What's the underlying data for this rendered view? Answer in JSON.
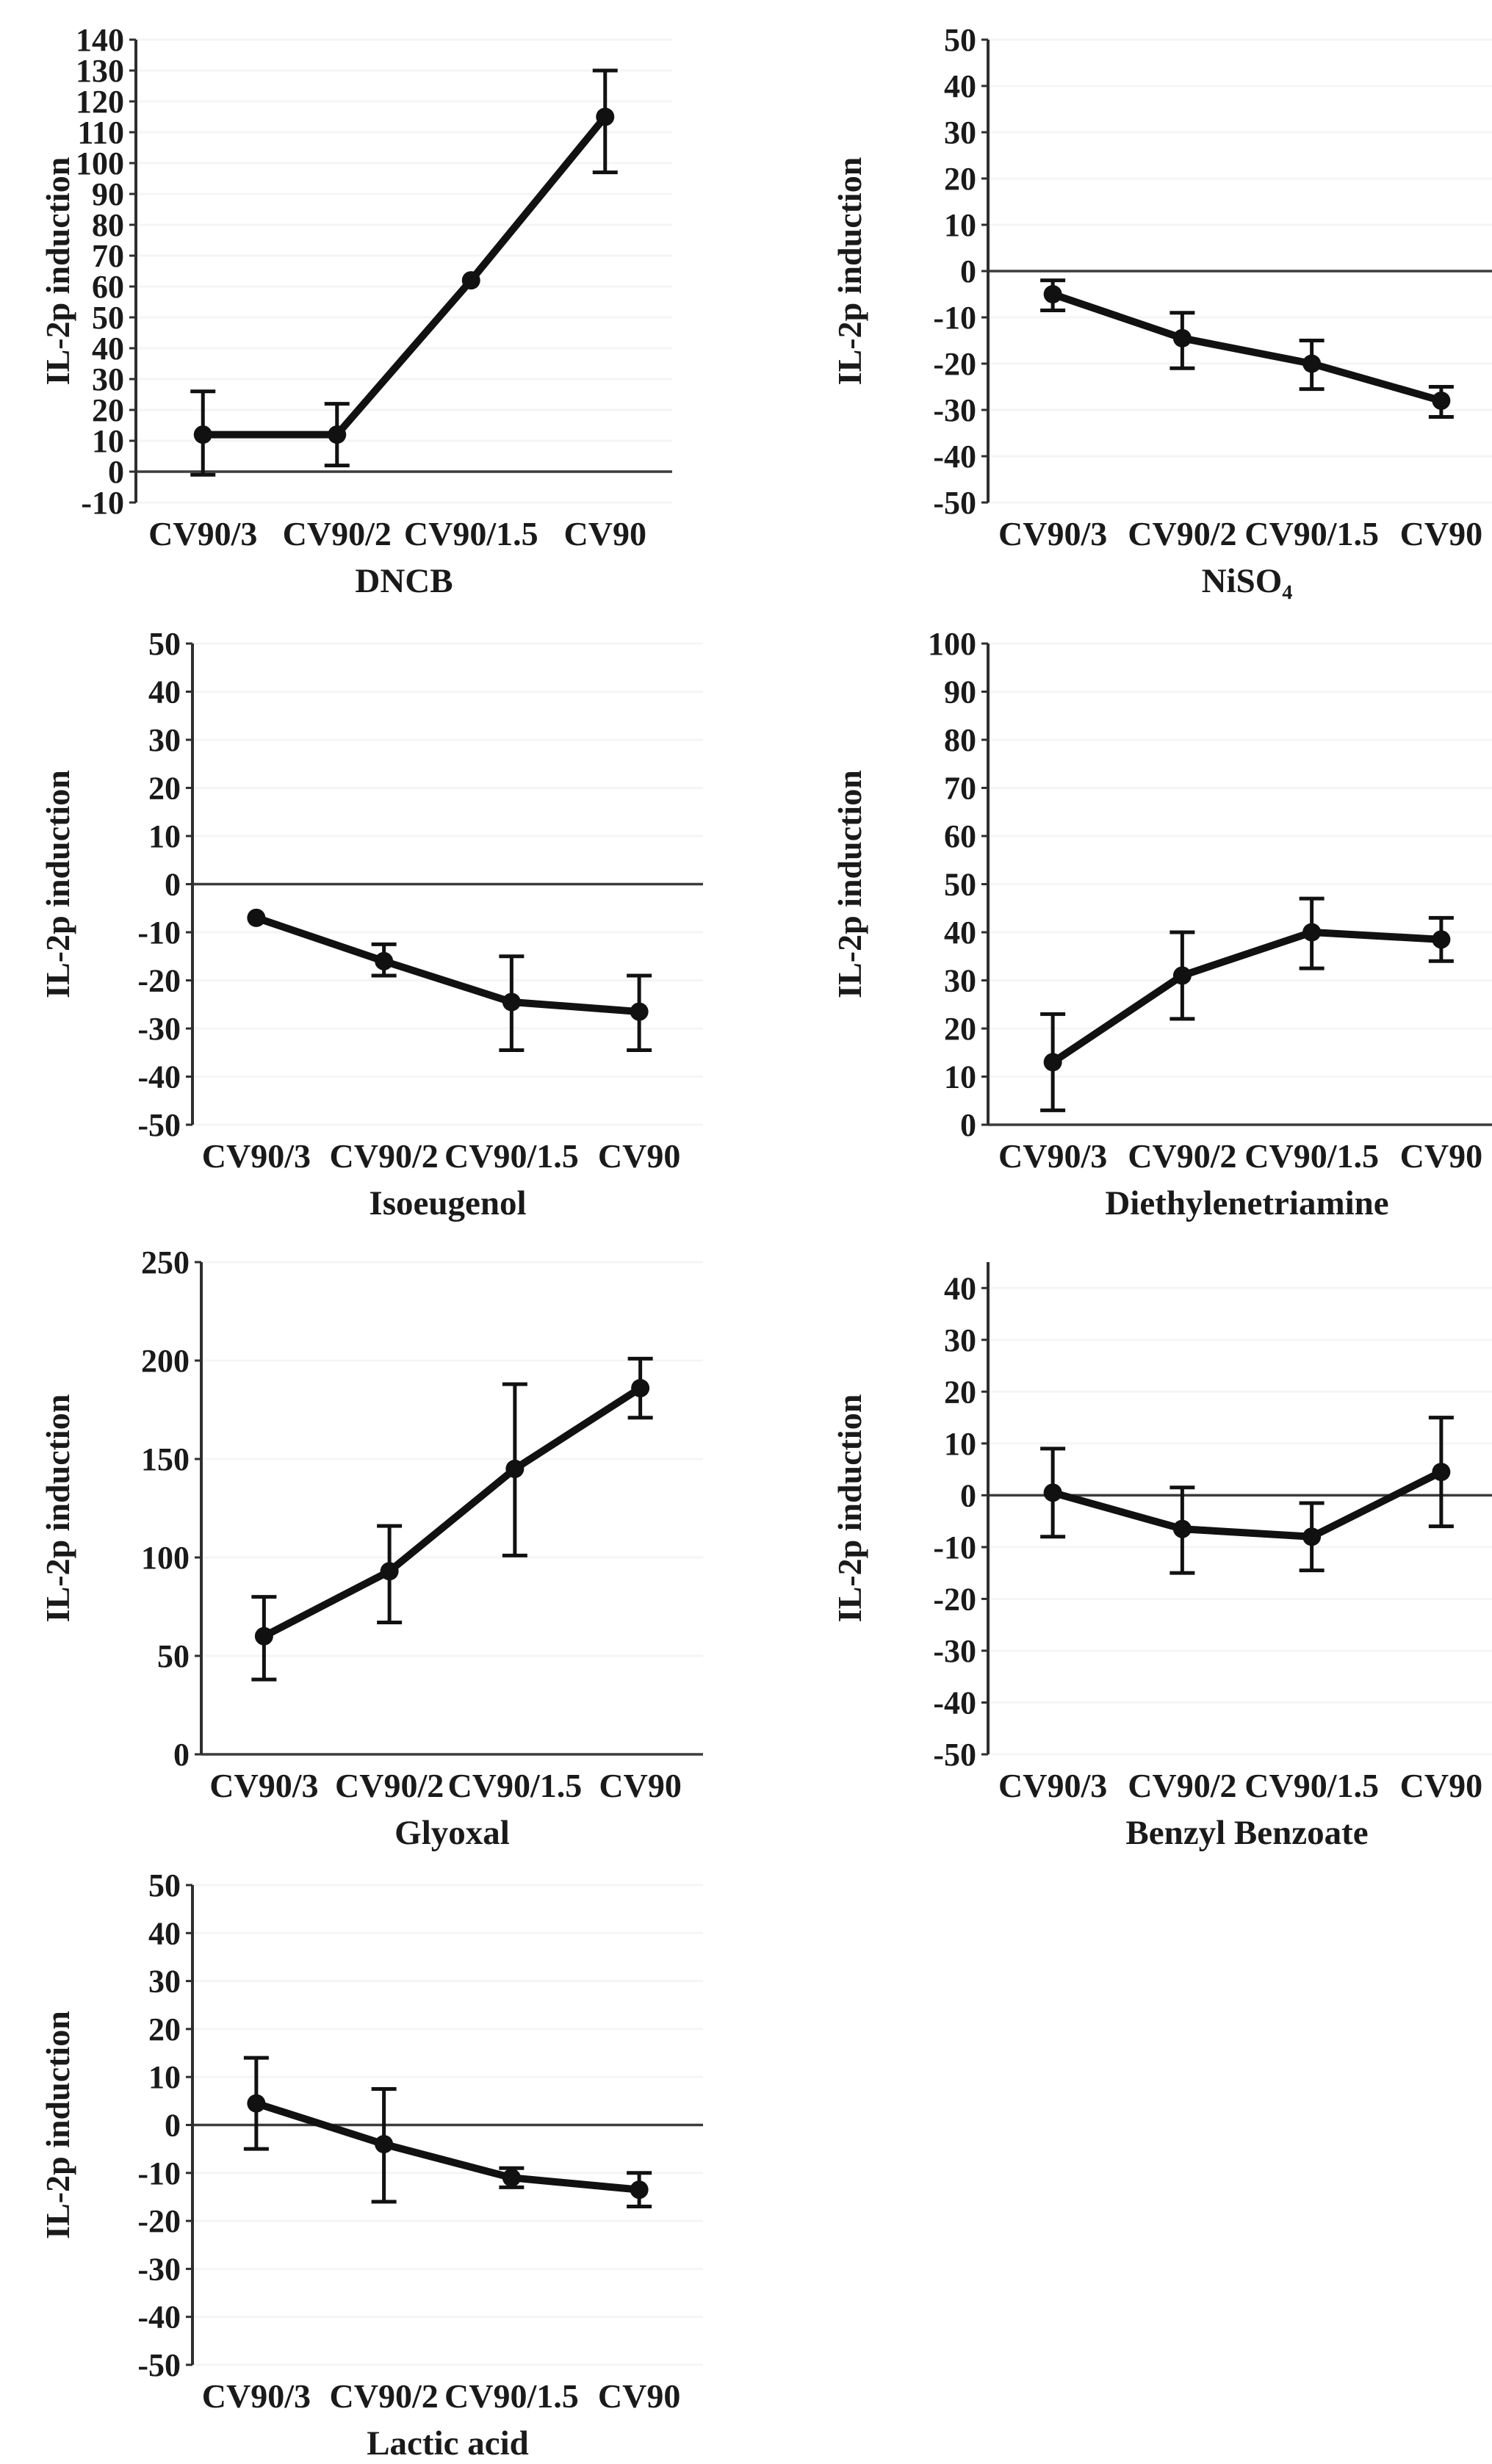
{
  "figure": {
    "description": "IL-2p induction dose-response panels",
    "shared_ylabel": "IL-2p induction",
    "categories": [
      "CV90/3",
      "CV90/2",
      "CV90/1.5",
      "CV90"
    ]
  },
  "style": {
    "ink": "#111111",
    "axis": "#2e2e2e",
    "zero_line": "#3c3c3c",
    "grid": "#f5f5f5",
    "text": "#1a1a1a",
    "background": "#ffffff"
  },
  "chart_data": [
    {
      "type": "line",
      "title": "DNCB",
      "ylabel": "IL-2p induction",
      "categories": [
        "CV90/3",
        "CV90/2",
        "CV90/1.5",
        "CV90"
      ],
      "values": [
        12,
        12,
        62,
        115
      ],
      "error_low": [
        -1,
        2,
        62,
        97
      ],
      "error_high": [
        26,
        22,
        62,
        130
      ],
      "ylim": [
        -10,
        140
      ],
      "yticks": {
        "min": -10,
        "max": 140,
        "step": 10
      },
      "grid": true,
      "legend": "none"
    },
    {
      "type": "line",
      "title": "NiSO₄",
      "ylabel": "IL-2p induction",
      "categories": [
        "CV90/3",
        "CV90/2",
        "CV90/1.5",
        "CV90"
      ],
      "values": [
        -5,
        -14.5,
        -20,
        -28
      ],
      "error_low": [
        -8.5,
        -21,
        -25.5,
        -31.5
      ],
      "error_high": [
        -2,
        -9,
        -15,
        -25
      ],
      "ylim": [
        -50,
        50
      ],
      "yticks": {
        "min": -50,
        "max": 50,
        "step": 10
      },
      "grid": true,
      "legend": "none"
    },
    {
      "type": "line",
      "title": "Isoeugenol",
      "ylabel": "IL-2p induction",
      "categories": [
        "CV90/3",
        "CV90/2",
        "CV90/1.5",
        "CV90"
      ],
      "values": [
        -7,
        -16,
        -24.5,
        -26.5
      ],
      "error_low": [
        -7,
        -19,
        -34.5,
        -34.5
      ],
      "error_high": [
        -7,
        -12.5,
        -15,
        -19
      ],
      "ylim": [
        -50,
        50
      ],
      "yticks": {
        "min": -50,
        "max": 50,
        "step": 10
      },
      "grid": true,
      "legend": "none"
    },
    {
      "type": "line",
      "title": "Diethylenetriamine",
      "ylabel": "IL-2p induction",
      "categories": [
        "CV90/3",
        "CV90/2",
        "CV90/1.5",
        "CV90"
      ],
      "values": [
        13,
        31,
        40,
        38.5
      ],
      "error_low": [
        3,
        22,
        32.5,
        34
      ],
      "error_high": [
        23,
        40,
        47,
        43
      ],
      "ylim": [
        0,
        100
      ],
      "yticks": {
        "min": 0,
        "max": 100,
        "step": 10
      },
      "grid": true,
      "legend": "none"
    },
    {
      "type": "line",
      "title": "Glyoxal",
      "ylabel": "IL-2p induction",
      "categories": [
        "CV90/3",
        "CV90/2",
        "CV90/1.5",
        "CV90"
      ],
      "values": [
        60,
        93,
        145,
        186
      ],
      "error_low": [
        38,
        67,
        101,
        171
      ],
      "error_high": [
        80,
        116,
        188,
        201
      ],
      "ylim": [
        0,
        250
      ],
      "yticks": {
        "min": 0,
        "max": 250,
        "step": 50
      },
      "grid": true,
      "legend": "none"
    },
    {
      "type": "line",
      "title": "Benzyl Benzoate",
      "ylabel": "IL-2p induction",
      "categories": [
        "CV90/3",
        "CV90/2",
        "CV90/1.5",
        "CV90"
      ],
      "values": [
        0.5,
        -6.5,
        -8,
        4.5
      ],
      "error_low": [
        -8,
        -15,
        -14.5,
        -6
      ],
      "error_high": [
        9,
        1.5,
        -1.5,
        15
      ],
      "ylim": [
        -50,
        45
      ],
      "yticks": {
        "min": -50,
        "max": 40,
        "step": 10
      },
      "grid": true,
      "legend": "none"
    },
    {
      "type": "line",
      "title": "Lactic acid",
      "ylabel": "IL-2p induction",
      "categories": [
        "CV90/3",
        "CV90/2",
        "CV90/1.5",
        "CV90"
      ],
      "values": [
        4.5,
        -4,
        -11,
        -13.5
      ],
      "error_low": [
        -5,
        -16,
        -13,
        -17
      ],
      "error_high": [
        14,
        7.5,
        -9,
        -10
      ],
      "ylim": [
        -50,
        50
      ],
      "yticks": {
        "min": -50,
        "max": 50,
        "step": 10
      },
      "grid": true,
      "legend": "none"
    }
  ]
}
